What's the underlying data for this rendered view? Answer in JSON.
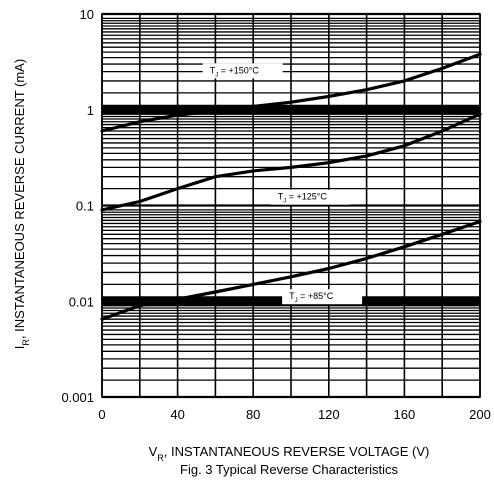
{
  "chart_data": {
    "type": "line",
    "title": "",
    "caption": "Fig. 3 Typical Reverse Characteristics",
    "xlabel": {
      "sym": "V",
      "sub": "R",
      "text": ", INSTANTANEOUS REVERSE VOLTAGE (V)"
    },
    "ylabel": {
      "sym": "I",
      "sub": "R",
      "text": ", INSTANTANEOUS REVERSE CURRENT (mA)"
    },
    "xlim": [
      0,
      200
    ],
    "ylim": [
      0.001,
      10
    ],
    "yscale": "log",
    "grid": true,
    "xticks": [
      0,
      40,
      80,
      120,
      160,
      200
    ],
    "xtick_labels": [
      "0",
      "40",
      "80",
      "120",
      "160",
      "200"
    ],
    "yticks": [
      0.001,
      0.01,
      0.1,
      1,
      10
    ],
    "ytick_labels": [
      "0.001",
      "0.01",
      "0.1",
      "1",
      "10"
    ],
    "series": [
      {
        "name": "T_J = +150°C",
        "label": {
          "main": "T",
          "sub": "J",
          "rest": " = +150°C"
        },
        "x": [
          0,
          20,
          40,
          60,
          80,
          100,
          120,
          140,
          160,
          180,
          200
        ],
        "y": [
          0.6,
          0.75,
          0.88,
          0.98,
          1.08,
          1.2,
          1.38,
          1.62,
          2.0,
          2.7,
          3.8
        ]
      },
      {
        "name": "T_J = +125°C",
        "label": {
          "main": "T",
          "sub": "J",
          "rest": " = +125°C"
        },
        "x": [
          0,
          20,
          40,
          60,
          80,
          100,
          120,
          140,
          160,
          180,
          200
        ],
        "y": [
          0.09,
          0.11,
          0.15,
          0.2,
          0.23,
          0.25,
          0.28,
          0.33,
          0.42,
          0.6,
          0.9
        ]
      },
      {
        "name": "T_J = +85°C",
        "label": {
          "main": "T",
          "sub": "J",
          "rest": " = +85°C"
        },
        "x": [
          0,
          20,
          40,
          60,
          80,
          100,
          120,
          140,
          160,
          180,
          200
        ],
        "y": [
          0.0065,
          0.009,
          0.0105,
          0.0125,
          0.015,
          0.018,
          0.022,
          0.028,
          0.037,
          0.05,
          0.068
        ]
      }
    ]
  }
}
